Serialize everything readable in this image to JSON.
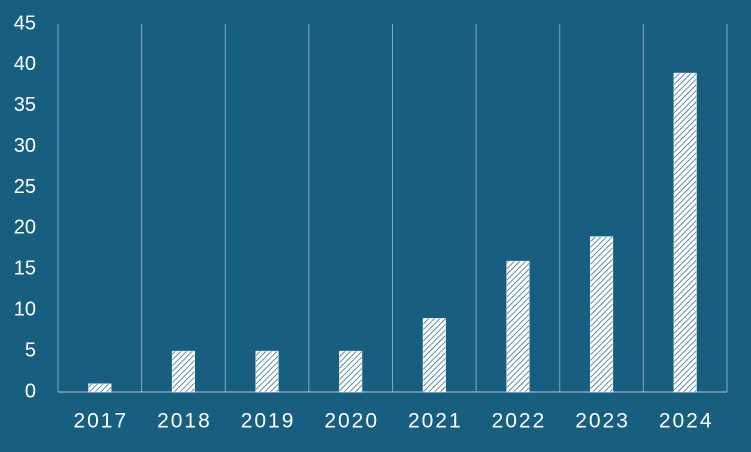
{
  "chart_data": {
    "type": "bar",
    "categories": [
      "2017",
      "2018",
      "2019",
      "2020",
      "2021",
      "2022",
      "2023",
      "2024"
    ],
    "values": [
      1,
      5,
      5,
      5,
      9,
      16,
      19,
      39
    ],
    "color": "#ffffff",
    "ylim": [
      0,
      45
    ],
    "yticks": [
      0,
      5,
      10,
      15,
      20,
      25,
      30,
      35,
      40,
      45
    ],
    "grid": true
  }
}
